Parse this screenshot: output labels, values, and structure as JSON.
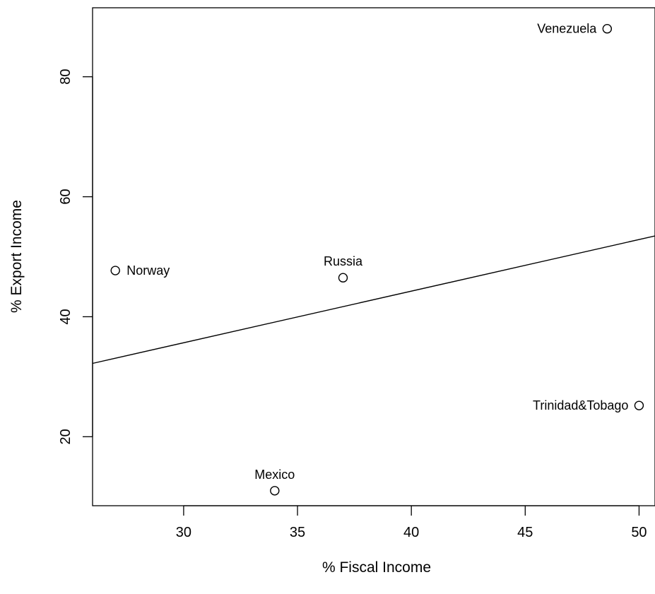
{
  "chart_data": {
    "type": "scatter",
    "title": "",
    "xlabel": "% Fiscal Income",
    "ylabel": "% Export Income",
    "xlim": [
      26.0,
      50.7
    ],
    "ylim": [
      8.5,
      91.5
    ],
    "xticks": [
      30,
      35,
      40,
      45,
      50
    ],
    "yticks": [
      20,
      40,
      60,
      80
    ],
    "grid": false,
    "points": [
      {
        "label": "Venezuela",
        "x": 48.6,
        "y": 88.0,
        "label_side": "left"
      },
      {
        "label": "Norway",
        "x": 27.0,
        "y": 47.7,
        "label_side": "right"
      },
      {
        "label": "Russia",
        "x": 37.0,
        "y": 46.5,
        "label_side": "top"
      },
      {
        "label": "Trinidad&Tobago",
        "x": 50.0,
        "y": 25.2,
        "label_side": "left"
      },
      {
        "label": "Mexico",
        "x": 34.0,
        "y": 11.0,
        "label_side": "top"
      }
    ],
    "fit_line": {
      "intercept": 0.0,
      "slope": 1.0
    }
  },
  "colors": {
    "ink": "#000000",
    "background": "#ffffff"
  }
}
